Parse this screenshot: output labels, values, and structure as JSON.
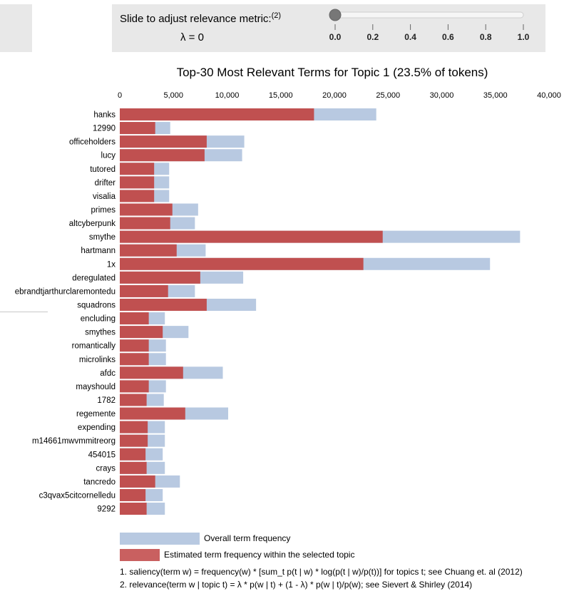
{
  "slider": {
    "label": "Slide to adjust relevance metric:",
    "footnote": "(2)",
    "lambda_text": "λ = 0",
    "value": 0,
    "ticks": [
      "0.0",
      "0.2",
      "0.4",
      "0.6",
      "0.8",
      "1.0"
    ]
  },
  "chart_data": {
    "type": "bar",
    "orientation": "horizontal",
    "title": "Top-30 Most Relevant Terms for Topic 1 (23.5% of tokens)",
    "xlim": [
      0,
      40000
    ],
    "x_ticks": [
      0,
      5000,
      10000,
      15000,
      20000,
      25000,
      30000,
      35000,
      40000
    ],
    "x_tick_labels": [
      "0",
      "5,000",
      "10,000",
      "15,000",
      "20,000",
      "25,000",
      "30,000",
      "35,000",
      "40,000"
    ],
    "categories": [
      "hanks",
      "12990",
      "officeholders",
      "lucy",
      "tutored",
      "drifter",
      "visalia",
      "primes",
      "altcyberpunk",
      "smythe",
      "hartmann",
      "1x",
      "deregulated",
      "ebrandtjarthurclaremontedu",
      "squadrons",
      "encluding",
      "smythes",
      "romantically",
      "microlinks",
      "afdc",
      "mayshould",
      "1782",
      "regemente",
      "expending",
      "m14661mwvmmitreorg",
      "454015",
      "crays",
      "tancredo",
      "c3qvax5citcornelledu",
      "9292"
    ],
    "series": [
      {
        "name": "Overall term frequency",
        "color": "#b8c9e1",
        "values": [
          23900,
          4700,
          11600,
          11400,
          4600,
          4600,
          4600,
          7300,
          7000,
          37300,
          8000,
          34500,
          11500,
          7000,
          12700,
          4200,
          6400,
          4300,
          4300,
          9600,
          4300,
          4100,
          10100,
          4200,
          4200,
          4000,
          4200,
          5600,
          4000,
          4200
        ]
      },
      {
        "name": "Estimated term frequency within the selected topic",
        "color": "#c05050",
        "values": [
          18100,
          3300,
          8100,
          7900,
          3200,
          3200,
          3200,
          4900,
          4700,
          24500,
          5300,
          22700,
          7500,
          4500,
          8100,
          2700,
          4000,
          2700,
          2700,
          5900,
          2700,
          2500,
          6100,
          2600,
          2600,
          2400,
          2500,
          3300,
          2400,
          2500
        ]
      }
    ],
    "legend_position": "bottom-left",
    "grid": false
  },
  "legend": {
    "overall_label": "Overall term frequency",
    "topic_label": "Estimated term frequency within the selected topic"
  },
  "notes": {
    "note1": "1. saliency(term w) = frequency(w) * [sum_t p(t | w) * log(p(t | w)/p(t))] for topics t; see Chuang et. al (2012)",
    "note2": "2. relevance(term w | topic t) = λ * p(w | t) + (1 - λ) * p(w | t)/p(w); see Sievert & Shirley (2014)"
  }
}
